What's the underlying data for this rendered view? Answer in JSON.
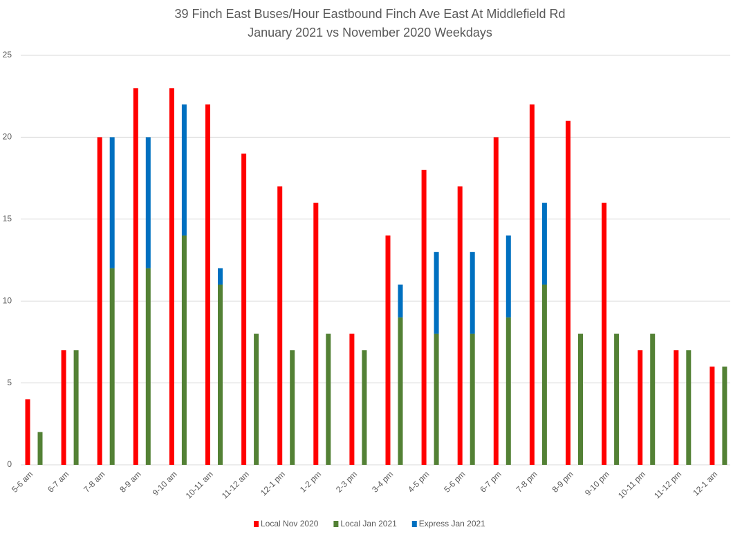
{
  "chart_data": {
    "type": "grouped_stacked_bar",
    "title": "39 Finch East Buses/Hour Eastbound Finch Ave East At Middlefield Rd",
    "subtitle": "January 2021 vs November 2020 Weekdays",
    "categories": [
      "5-6 am",
      "6-7 am",
      "7-8 am",
      "8-9 am",
      "9-10 am",
      "10-11 am",
      "11-12 am",
      "12-1 pm",
      "1-2 pm",
      "2-3 pm",
      "3-4 pm",
      "4-5 pm",
      "5-6 pm",
      "6-7 pm",
      "7-8 pm",
      "8-9 pm",
      "9-10 pm",
      "10-11 pm",
      "11-12 pm",
      "12-1 am"
    ],
    "series": [
      {
        "name": "Local Nov 2020",
        "color": "#ff0000",
        "stack": "nov",
        "values": [
          4,
          7,
          20,
          23,
          23,
          22,
          19,
          17,
          16,
          8,
          14,
          18,
          17,
          20,
          22,
          21,
          16,
          7,
          7,
          6
        ]
      },
      {
        "name": "Local Jan 2021",
        "color": "#538135",
        "stack": "jan",
        "values": [
          2,
          7,
          12,
          12,
          14,
          11,
          8,
          7,
          8,
          7,
          9,
          8,
          8,
          9,
          11,
          8,
          8,
          8,
          7,
          6
        ]
      },
      {
        "name": "Express Jan 2021",
        "color": "#0070c0",
        "stack": "jan",
        "values": [
          0,
          0,
          8,
          8,
          8,
          1,
          0,
          0,
          0,
          0,
          2,
          5,
          5,
          5,
          5,
          0,
          0,
          0,
          0,
          0
        ]
      }
    ],
    "ylim": [
      0,
      25
    ],
    "yticks": [
      0,
      5,
      10,
      15,
      20,
      25
    ],
    "grid": true,
    "legend": "bottom"
  }
}
